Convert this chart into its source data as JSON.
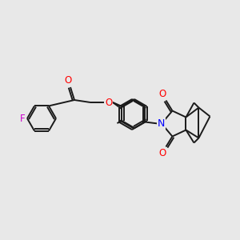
{
  "background_color": "#e8e8e8",
  "bond_color": "#1a1a1a",
  "atom_colors": {
    "F": "#cc00cc",
    "O": "#ff0000",
    "N": "#0000ff",
    "C": "#1a1a1a"
  },
  "figsize": [
    3.0,
    3.0
  ],
  "dpi": 100,
  "bond_lw": 1.4,
  "font_size": 8.5
}
